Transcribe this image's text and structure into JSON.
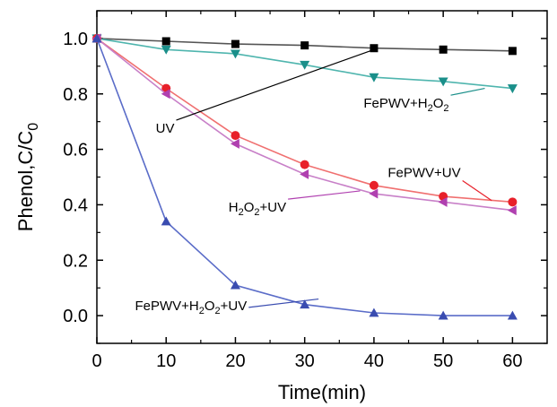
{
  "chart_data": {
    "type": "line",
    "title": "",
    "xlabel": "Time(min)",
    "ylabel_main": "Phenol,C/C",
    "ylabel_sub": "0",
    "xlim": [
      0,
      65
    ],
    "ylim": [
      -0.1,
      1.1
    ],
    "x_ticks": [
      0,
      10,
      20,
      30,
      40,
      50,
      60
    ],
    "y_ticks": [
      0.0,
      0.2,
      0.4,
      0.6,
      0.8,
      1.0
    ],
    "y_tick_labels": [
      "0.0",
      "0.2",
      "0.4",
      "0.6",
      "0.8",
      "1.0"
    ],
    "grid": false,
    "x": [
      0,
      10,
      20,
      30,
      40,
      50,
      60
    ],
    "series": [
      {
        "name": "UV",
        "values": [
          1.0,
          0.99,
          0.98,
          0.975,
          0.965,
          0.96,
          0.955
        ],
        "color": "#000000",
        "line_color": "#555555",
        "marker": "square"
      },
      {
        "name": "FePWV+H2O2",
        "values": [
          1.0,
          0.96,
          0.945,
          0.905,
          0.86,
          0.845,
          0.82
        ],
        "color": "#1a8f8a",
        "line_color": "#4fb5ae",
        "marker": "triangle-down"
      },
      {
        "name": "FePWV+UV",
        "values": [
          1.0,
          0.82,
          0.65,
          0.545,
          0.47,
          0.43,
          0.41
        ],
        "color": "#e8202a",
        "line_color": "#f07070",
        "marker": "circle"
      },
      {
        "name": "H2O2+UV",
        "values": [
          1.0,
          0.8,
          0.62,
          0.51,
          0.44,
          0.41,
          0.38
        ],
        "color": "#b040b0",
        "line_color": "#c880c8",
        "marker": "triangle-left"
      },
      {
        "name": "FePWV+H2O2+UV",
        "values": [
          1.0,
          0.34,
          0.11,
          0.04,
          0.01,
          0.0,
          0.0
        ],
        "color": "#3a4cb0",
        "line_color": "#5a6cc8",
        "marker": "triangle-up"
      }
    ],
    "annotations": [
      {
        "series": "UV",
        "parts": [
          {
            "t": "UV"
          }
        ],
        "color": "#000000",
        "anchor_x": 40,
        "anchor_y": 0.96,
        "text_x": 8.5,
        "text_y": 0.66
      },
      {
        "series": "FePWV+H2O2",
        "parts": [
          {
            "t": "FePWV+H"
          },
          {
            "t": "2",
            "sub": true
          },
          {
            "t": "O"
          },
          {
            "t": "2",
            "sub": true
          }
        ],
        "color": "#1a8f8a",
        "anchor_x": 56,
        "anchor_y": 0.82,
        "text_x": 38.5,
        "text_y": 0.75
      },
      {
        "series": "FePWV+UV",
        "parts": [
          {
            "t": "FePWV+UV"
          }
        ],
        "color": "#e8202a",
        "anchor_x": 57,
        "anchor_y": 0.415,
        "text_x": 42,
        "text_y": 0.5
      },
      {
        "series": "H2O2+UV",
        "parts": [
          {
            "t": "H"
          },
          {
            "t": "2",
            "sub": true
          },
          {
            "t": "O"
          },
          {
            "t": "2",
            "sub": true
          },
          {
            "t": "+UV"
          }
        ],
        "color": "#b040b0",
        "anchor_x": 38,
        "anchor_y": 0.45,
        "text_x": 19,
        "text_y": 0.375
      },
      {
        "series": "FePWV+H2O2+UV",
        "parts": [
          {
            "t": "FePWV+H"
          },
          {
            "t": "2",
            "sub": true
          },
          {
            "t": "O"
          },
          {
            "t": "2",
            "sub": true
          },
          {
            "t": "+UV"
          }
        ],
        "color": "#3a4cb0",
        "anchor_x": 32,
        "anchor_y": 0.06,
        "text_x": 5.5,
        "text_y": 0.02
      }
    ]
  }
}
